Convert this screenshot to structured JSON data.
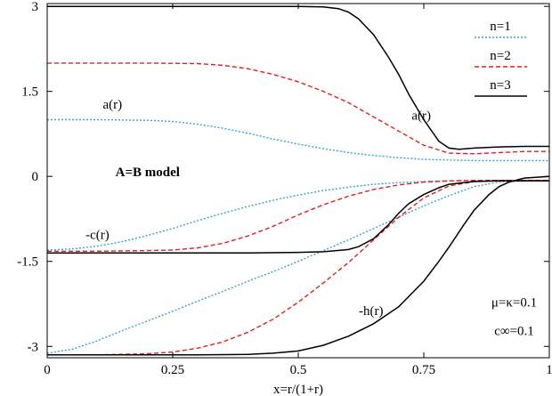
{
  "chart_data": {
    "type": "line",
    "xlabel": "x=r/(1+r)",
    "xlim": [
      0,
      1
    ],
    "ylim": [
      -3.2,
      3.05
    ],
    "xticks": [
      {
        "v": 0,
        "label": "0"
      },
      {
        "v": 0.25,
        "label": "0.25"
      },
      {
        "v": 0.5,
        "label": "0.5"
      },
      {
        "v": 0.75,
        "label": "0.75"
      },
      {
        "v": 1,
        "label": "1"
      }
    ],
    "yticks": [
      {
        "v": 3,
        "label": "3"
      },
      {
        "v": 1.5,
        "label": "1.5"
      },
      {
        "v": 0,
        "label": "0"
      },
      {
        "v": -1.5,
        "label": "-1.5"
      },
      {
        "v": -3,
        "label": "-3"
      }
    ],
    "grid": false,
    "legend_position": "top-right",
    "annotations": [
      {
        "text": "A=B model",
        "x": 0.2,
        "y": 0.0,
        "bold": true
      },
      {
        "text": "a(r)",
        "x": 0.13,
        "y": 1.2
      },
      {
        "text": "a(r)",
        "x": 0.745,
        "y": 1.0
      },
      {
        "text": "-c(r)",
        "x": 0.1,
        "y": -1.1
      },
      {
        "text": "-h(r)",
        "x": 0.645,
        "y": -2.45
      },
      {
        "text": "μ=κ=0.1",
        "x": 0.93,
        "y": -2.3
      },
      {
        "text": "c∞=0.1",
        "x": 0.93,
        "y": -2.8
      }
    ],
    "series": [
      {
        "name": "n=1",
        "color": "#3a9fd6",
        "dash": "2,2",
        "width": 1.4,
        "curves": [
          {
            "x": [
              0,
              0.1,
              0.2,
              0.25,
              0.3,
              0.35,
              0.4,
              0.45,
              0.5,
              0.55,
              0.6,
              0.65,
              0.7,
              0.75,
              0.8,
              0.85,
              0.9,
              0.95,
              1.0
            ],
            "y": [
              1.0,
              1.0,
              0.99,
              0.97,
              0.92,
              0.85,
              0.76,
              0.66,
              0.57,
              0.49,
              0.42,
              0.37,
              0.33,
              0.3,
              0.29,
              0.28,
              0.28,
              0.28,
              0.28
            ]
          },
          {
            "x": [
              0,
              0.05,
              0.1,
              0.15,
              0.2,
              0.25,
              0.3,
              0.35,
              0.4,
              0.45,
              0.5,
              0.55,
              0.6,
              0.65,
              0.7,
              0.75,
              0.8,
              0.85,
              0.9,
              0.95,
              1.0
            ],
            "y": [
              -1.3,
              -1.28,
              -1.23,
              -1.15,
              -1.04,
              -0.92,
              -0.78,
              -0.65,
              -0.53,
              -0.42,
              -0.33,
              -0.25,
              -0.19,
              -0.14,
              -0.11,
              -0.09,
              -0.08,
              -0.07,
              -0.07,
              -0.07,
              -0.07
            ]
          },
          {
            "x": [
              0,
              0.05,
              0.1,
              0.15,
              0.2,
              0.25,
              0.3,
              0.35,
              0.4,
              0.45,
              0.5,
              0.55,
              0.6,
              0.65,
              0.7,
              0.75,
              0.8,
              0.85,
              0.9,
              0.95,
              1.0
            ],
            "y": [
              -3.12,
              -3.05,
              -2.9,
              -2.72,
              -2.55,
              -2.38,
              -2.2,
              -2.03,
              -1.85,
              -1.68,
              -1.5,
              -1.31,
              -1.12,
              -0.92,
              -0.72,
              -0.52,
              -0.34,
              -0.18,
              -0.1,
              -0.08,
              -0.08
            ]
          }
        ]
      },
      {
        "name": "n=2",
        "color": "#e0201b",
        "dash": "5,3",
        "width": 1.4,
        "curves": [
          {
            "x": [
              0,
              0.1,
              0.2,
              0.3,
              0.35,
              0.4,
              0.45,
              0.5,
              0.55,
              0.6,
              0.65,
              0.7,
              0.75,
              0.8,
              0.85,
              0.9,
              0.95,
              1.0
            ],
            "y": [
              2.0,
              2.0,
              2.0,
              1.99,
              1.96,
              1.9,
              1.8,
              1.67,
              1.5,
              1.3,
              1.05,
              0.8,
              0.55,
              0.41,
              0.4,
              0.42,
              0.44,
              0.44
            ]
          },
          {
            "x": [
              0,
              0.1,
              0.2,
              0.25,
              0.3,
              0.35,
              0.4,
              0.45,
              0.5,
              0.55,
              0.6,
              0.65,
              0.7,
              0.75,
              0.8,
              0.85,
              0.9,
              0.95,
              1.0
            ],
            "y": [
              -1.32,
              -1.32,
              -1.31,
              -1.3,
              -1.26,
              -1.18,
              -1.05,
              -0.88,
              -0.68,
              -0.5,
              -0.35,
              -0.23,
              -0.15,
              -0.1,
              -0.08,
              -0.07,
              -0.07,
              -0.07,
              -0.07
            ]
          },
          {
            "x": [
              0,
              0.1,
              0.2,
              0.25,
              0.3,
              0.35,
              0.4,
              0.45,
              0.5,
              0.55,
              0.6,
              0.65,
              0.7,
              0.75,
              0.8,
              0.85,
              0.9,
              0.95,
              1.0
            ],
            "y": [
              -3.15,
              -3.15,
              -3.13,
              -3.1,
              -3.03,
              -2.92,
              -2.75,
              -2.52,
              -2.22,
              -1.88,
              -1.52,
              -1.12,
              -0.72,
              -0.38,
              -0.17,
              -0.09,
              -0.07,
              -0.07,
              -0.07
            ]
          }
        ]
      },
      {
        "name": "n=3",
        "color": "#000000",
        "dash": "",
        "width": 1.5,
        "curves": [
          {
            "x": [
              0,
              0.1,
              0.2,
              0.3,
              0.4,
              0.5,
              0.55,
              0.58,
              0.6,
              0.62,
              0.65,
              0.68,
              0.7,
              0.72,
              0.75,
              0.78,
              0.8,
              0.82,
              0.85,
              0.9,
              0.95,
              1.0
            ],
            "y": [
              3.0,
              3.0,
              3.0,
              3.0,
              3.0,
              3.0,
              2.99,
              2.96,
              2.9,
              2.78,
              2.5,
              2.1,
              1.8,
              1.45,
              1.0,
              0.62,
              0.5,
              0.48,
              0.5,
              0.52,
              0.53,
              0.53
            ]
          },
          {
            "x": [
              0,
              0.1,
              0.2,
              0.3,
              0.4,
              0.5,
              0.55,
              0.6,
              0.62,
              0.65,
              0.68,
              0.7,
              0.72,
              0.75,
              0.78,
              0.8,
              0.85,
              0.9,
              0.95,
              1.0
            ],
            "y": [
              -1.35,
              -1.35,
              -1.35,
              -1.35,
              -1.35,
              -1.34,
              -1.33,
              -1.29,
              -1.24,
              -1.1,
              -0.85,
              -0.65,
              -0.48,
              -0.32,
              -0.2,
              -0.14,
              -0.09,
              -0.08,
              -0.08,
              -0.08
            ]
          },
          {
            "x": [
              0,
              0.1,
              0.2,
              0.3,
              0.4,
              0.45,
              0.5,
              0.55,
              0.6,
              0.65,
              0.7,
              0.75,
              0.78,
              0.8,
              0.83,
              0.85,
              0.88,
              0.9,
              0.92,
              0.95,
              1.0
            ],
            "y": [
              -3.15,
              -3.15,
              -3.15,
              -3.15,
              -3.14,
              -3.12,
              -3.08,
              -2.98,
              -2.82,
              -2.6,
              -2.3,
              -1.85,
              -1.5,
              -1.25,
              -0.85,
              -0.6,
              -0.32,
              -0.18,
              -0.1,
              -0.03,
              0.0
            ]
          }
        ]
      }
    ]
  }
}
